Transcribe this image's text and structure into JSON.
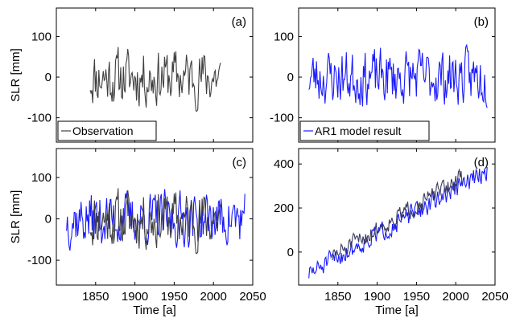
{
  "chart_data": [
    {
      "type": "line",
      "panel_label": "(a)",
      "ylabel": "SLR [mm]",
      "xlabel": "",
      "xlim": [
        1800,
        2050
      ],
      "ylim": [
        -160,
        170
      ],
      "xticks": [
        1850,
        1900,
        1950,
        2000,
        2050
      ],
      "yticks": [
        -100,
        0,
        100
      ],
      "show_xticklabels": false,
      "legend": "bottom-left",
      "series": [
        {
          "name": "Observation",
          "color": "#404040",
          "x_start": 1843,
          "x_end": 2009,
          "points": 150,
          "seed": 11,
          "trend": [
            0,
            0
          ],
          "amp": 62
        }
      ]
    },
    {
      "type": "line",
      "panel_label": "(b)",
      "ylabel": "",
      "xlabel": "",
      "xlim": [
        1800,
        2050
      ],
      "ylim": [
        -160,
        170
      ],
      "xticks": [
        1850,
        1900,
        1950,
        2000,
        2050
      ],
      "yticks": [
        -100,
        0,
        100
      ],
      "show_xticklabels": false,
      "legend": "bottom-left",
      "series": [
        {
          "name": "AR1 model result",
          "color": "#1a1aff",
          "x_start": 1813,
          "x_end": 2040,
          "points": 210,
          "seed": 23,
          "trend": [
            0,
            0
          ],
          "amp": 60
        }
      ]
    },
    {
      "type": "line",
      "panel_label": "(c)",
      "ylabel": "SLR [mm]",
      "xlabel": "Time [a]",
      "xlim": [
        1800,
        2050
      ],
      "ylim": [
        -160,
        170
      ],
      "xticks": [
        1850,
        1900,
        1950,
        2000,
        2050
      ],
      "yticks": [
        -100,
        0,
        100
      ],
      "show_xticklabels": true,
      "legend": "",
      "series": [
        {
          "color": "#1a1aff",
          "x_start": 1813,
          "x_end": 2040,
          "points": 210,
          "seed": 37,
          "trend": [
            0,
            0
          ],
          "amp": 58
        },
        {
          "color": "#404040",
          "x_start": 1843,
          "x_end": 2009,
          "points": 150,
          "seed": 11,
          "trend": [
            0,
            0
          ],
          "amp": 62
        }
      ]
    },
    {
      "type": "line",
      "panel_label": "(d)",
      "ylabel": "",
      "xlabel": "Time [a]",
      "xlim": [
        1800,
        2050
      ],
      "ylim": [
        -150,
        470
      ],
      "xticks": [
        1850,
        1900,
        1950,
        2000,
        2050
      ],
      "yticks": [
        0,
        200,
        400
      ],
      "show_xticklabels": true,
      "legend": "",
      "series": [
        {
          "color": "#1a1aff",
          "x_start": 1813,
          "x_end": 2040,
          "points": 210,
          "seed": 51,
          "trend": [
            -100,
            370
          ],
          "amp": 40
        },
        {
          "color": "#3a3a5e",
          "x_start": 1843,
          "x_end": 2009,
          "points": 150,
          "seed": 51,
          "trend": [
            -20,
            340
          ],
          "amp": 36
        }
      ]
    }
  ]
}
